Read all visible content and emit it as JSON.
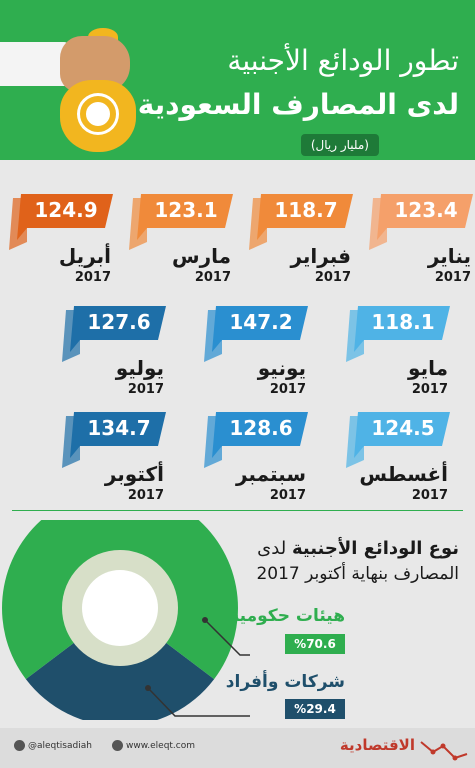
{
  "header": {
    "title_line1": "تطور الودائع الأجنبية",
    "title_line2": "لدى المصارف السعودية",
    "unit": "(مليار ريال)"
  },
  "colors": {
    "header_green": "#2fae4f",
    "orange_dark": "#e0621a",
    "orange": "#f08a3a",
    "orange_light": "#f5a06a",
    "blue_dark": "#1e6fa8",
    "blue": "#2a8fd0",
    "blue_light": "#4fb3e6",
    "navy": "#1f4f6b"
  },
  "chart_data": [
    {
      "type": "bar",
      "categories": [
        "يناير 2017",
        "فبراير 2017",
        "مارس 2017",
        "أبريل 2017",
        "مايو 2017",
        "يونيو 2017",
        "يوليو 2017",
        "أغسطس 2017",
        "سبتمبر 2017",
        "أكتوبر 2017"
      ],
      "values": [
        123.4,
        118.7,
        123.1,
        124.9,
        118.1,
        147.2,
        127.6,
        124.5,
        128.6,
        134.7
      ],
      "title": "تطور الودائع الأجنبية لدى المصارف السعودية",
      "ylabel": "(مليار ريال)"
    },
    {
      "type": "pie",
      "title": "نوع الودائع الأجنبية لدى المصارف بنهاية أكتوبر 2017",
      "categories": [
        "هيئات حكومية",
        "شركات وأفراد"
      ],
      "values": [
        70.6,
        29.4
      ]
    }
  ],
  "months": [
    {
      "month": "يناير",
      "year": "2017",
      "value": "123.4",
      "color": "#f5a06a"
    },
    {
      "month": "فبراير",
      "year": "2017",
      "value": "118.7",
      "color": "#f08a3a"
    },
    {
      "month": "مارس",
      "year": "2017",
      "value": "123.1",
      "color": "#f08a3a"
    },
    {
      "month": "أبريل",
      "year": "2017",
      "value": "124.9",
      "color": "#e0621a"
    },
    {
      "month": "مايو",
      "year": "2017",
      "value": "118.1",
      "color": "#4fb3e6"
    },
    {
      "month": "يونيو",
      "year": "2017",
      "value": "147.2",
      "color": "#2a8fd0"
    },
    {
      "month": "يوليو",
      "year": "2017",
      "value": "127.6",
      "color": "#1e6fa8"
    },
    {
      "month": "أغسطس",
      "year": "2017",
      "value": "124.5",
      "color": "#4fb3e6"
    },
    {
      "month": "سبتمبر",
      "year": "2017",
      "value": "128.6",
      "color": "#2a8fd0"
    },
    {
      "month": "أكتوبر",
      "year": "2017",
      "value": "134.7",
      "color": "#1e6fa8"
    }
  ],
  "deposit_type": {
    "title_bold": "نوع الودائع الأجنبية",
    "title_rest": "لدى",
    "title_line2": "المصارف بنهاية أكتوبر 2017",
    "government_label": "هيئات حكومية",
    "government_pct": "%70.6",
    "companies_label": "شركات وأفراد",
    "companies_pct": "%29.4"
  },
  "footer": {
    "twitter_handle": "@aleqtisadiah",
    "website": "www.eleqt.com",
    "brand": "الاقتصادية"
  }
}
